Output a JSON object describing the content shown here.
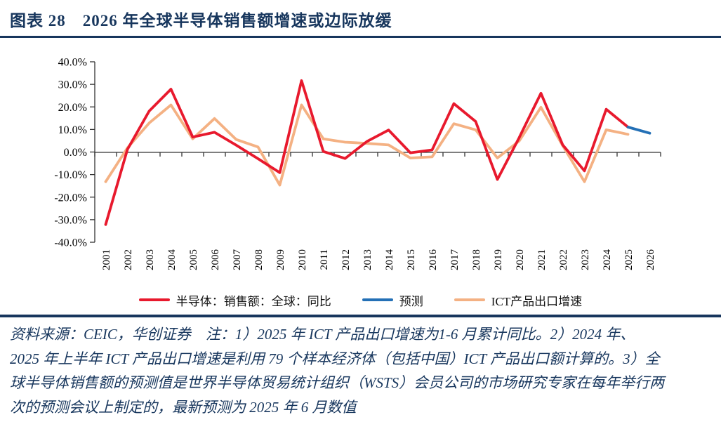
{
  "header": {
    "title": "图表 28　2026 年全球半导体销售额增速或边际放缓"
  },
  "colors": {
    "navy_accent": "#17365d",
    "series_red": "#e8192d",
    "series_blue": "#2470b6",
    "series_orange": "#f4b183",
    "axis": "#333333"
  },
  "legend": [
    {
      "label": "半导体：销售额：全球：同比"
    },
    {
      "label": "预测"
    },
    {
      "label": "ICT产品出口增速"
    }
  ],
  "chart_data": {
    "type": "line",
    "title": "",
    "xlabel": "",
    "ylabel": "",
    "ylim": [
      -40,
      40
    ],
    "ytick_step": 10,
    "grid": false,
    "legend_position": "bottom",
    "yticks": [
      "40.0%",
      "30.0%",
      "20.0%",
      "10.0%",
      "0.0%",
      "-10.0%",
      "-20.0%",
      "-30.0%",
      "-40.0%"
    ],
    "x": [
      "2001",
      "2002",
      "2003",
      "2004",
      "2005",
      "2006",
      "2007",
      "2008",
      "2009",
      "2010",
      "2011",
      "2012",
      "2013",
      "2014",
      "2015",
      "2016",
      "2017",
      "2018",
      "2019",
      "2020",
      "2021",
      "2022",
      "2023",
      "2024",
      "2025",
      "2026"
    ],
    "series": [
      {
        "name": "半导体：销售额：全球：同比",
        "color": "#e8192d",
        "unit": "%",
        "values": [
          -32,
          1.3,
          18.3,
          28,
          6.8,
          8.9,
          3.2,
          -2.8,
          -9,
          31.8,
          0.4,
          -2.7,
          4.8,
          9.9,
          -0.2,
          1.1,
          21.6,
          13.7,
          -12,
          6.5,
          26.2,
          3.3,
          -8.2,
          19.1,
          11.2,
          null
        ]
      },
      {
        "name": "预测",
        "color": "#2470b6",
        "unit": "%",
        "values": [
          null,
          null,
          null,
          null,
          null,
          null,
          null,
          null,
          null,
          null,
          null,
          null,
          null,
          null,
          null,
          null,
          null,
          null,
          null,
          null,
          null,
          null,
          null,
          null,
          11.2,
          8.5
        ]
      },
      {
        "name": "ICT产品出口增速",
        "color": "#f4b183",
        "unit": "%",
        "values": [
          -13,
          2,
          13,
          21,
          6,
          15,
          5.7,
          2.4,
          -14.5,
          21,
          6,
          4.5,
          4,
          3.3,
          -2.5,
          -2,
          12.7,
          10,
          -2.5,
          5,
          20,
          3,
          -13,
          10,
          8,
          null
        ]
      }
    ]
  },
  "footer": {
    "lines": [
      "资料来源：CEIC，华创证券　注：1）2025 年 ICT 产品出口增速为1-6 月累计同比。2）2024 年、",
      "2025 年上半年 ICT 产品出口增速是利用 79 个样本经济体（包括中国）ICT 产品出口额计算的。3）全",
      "球半导体销售额的预测值是世界半导体贸易统计组织（WSTS）会员公司的市场研究专家在每年举行两",
      "次的预测会议上制定的，最新预测为 2025 年 6 月数值"
    ]
  }
}
